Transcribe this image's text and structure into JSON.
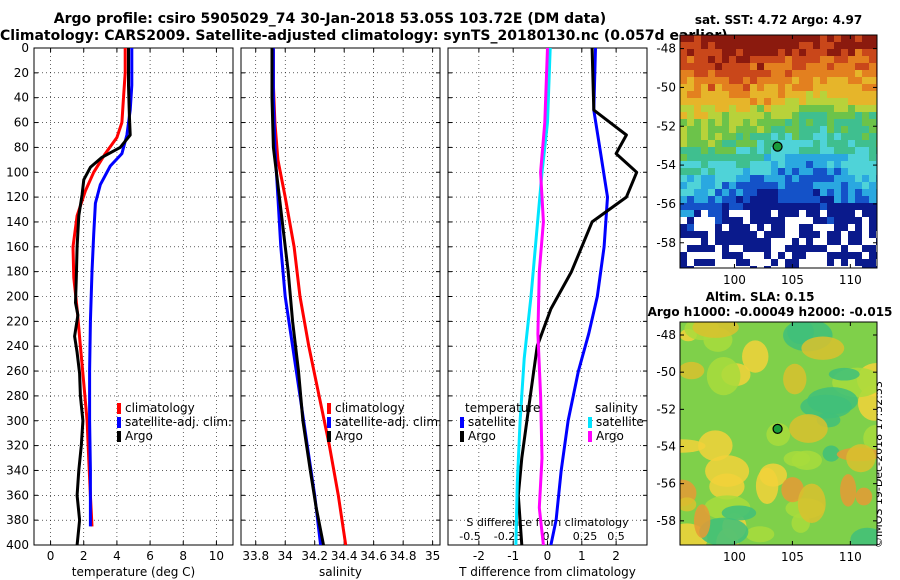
{
  "header": {
    "line1": "Argo profile: csiro 5905029_74 30-Jan-2018 53.05S 103.72E (DM data)",
    "line2": "Climatology: CARS2009. Satellite-adjusted climatology: synTS_20180130.nc (0.057d earlier)"
  },
  "colors": {
    "climatology": "#ff0000",
    "satellite": "#0000ff",
    "argo": "#000000",
    "sal_sat": "#00e5ff",
    "sal_argo": "#ff00ff"
  },
  "chart_data": [
    {
      "id": "temperature",
      "type": "line",
      "xlabel": "temperature (deg C)",
      "ylabel": "",
      "xlim": [
        -1,
        11
      ],
      "ylim": [
        0,
        400
      ],
      "xticks": [
        "0",
        "2",
        "4",
        "6",
        "8",
        "10"
      ],
      "yticks": [
        "0",
        "20",
        "40",
        "60",
        "80",
        "100",
        "120",
        "140",
        "160",
        "180",
        "200",
        "220",
        "240",
        "260",
        "280",
        "300",
        "320",
        "340",
        "360",
        "380",
        "400"
      ],
      "grid": true,
      "legend_position": "bottom-right",
      "series": [
        {
          "name": "climatology",
          "color_key": "climatology",
          "points": [
            [
              4.5,
              0
            ],
            [
              4.5,
              20
            ],
            [
              4.4,
              40
            ],
            [
              4.3,
              60
            ],
            [
              4.0,
              72
            ],
            [
              3.3,
              85
            ],
            [
              2.6,
              100
            ],
            [
              2.1,
              115
            ],
            [
              1.6,
              135
            ],
            [
              1.35,
              160
            ],
            [
              1.4,
              185
            ],
            [
              1.6,
              210
            ],
            [
              1.8,
              240
            ],
            [
              2.0,
              270
            ],
            [
              2.2,
              300
            ],
            [
              2.3,
              330
            ],
            [
              2.4,
              360
            ],
            [
              2.5,
              385
            ]
          ]
        },
        {
          "name": "satellite-adj. clim.",
          "color_key": "satellite",
          "points": [
            [
              4.9,
              0
            ],
            [
              4.9,
              30
            ],
            [
              4.8,
              50
            ],
            [
              4.6,
              70
            ],
            [
              4.3,
              85
            ],
            [
              3.6,
              95
            ],
            [
              3.0,
              110
            ],
            [
              2.7,
              125
            ],
            [
              2.6,
              150
            ],
            [
              2.5,
              180
            ],
            [
              2.4,
              220
            ],
            [
              2.35,
              260
            ],
            [
              2.35,
              300
            ],
            [
              2.4,
              340
            ],
            [
              2.4,
              385
            ]
          ]
        },
        {
          "name": "Argo",
          "color_key": "argo",
          "points": [
            [
              4.7,
              0
            ],
            [
              4.7,
              30
            ],
            [
              4.75,
              55
            ],
            [
              4.8,
              70
            ],
            [
              4.2,
              80
            ],
            [
              3.1,
              88
            ],
            [
              2.4,
              96
            ],
            [
              2.0,
              106
            ],
            [
              1.9,
              118
            ],
            [
              1.7,
              135
            ],
            [
              1.6,
              160
            ],
            [
              1.55,
              185
            ],
            [
              1.5,
              205
            ],
            [
              1.65,
              215
            ],
            [
              1.45,
              232
            ],
            [
              1.6,
              245
            ],
            [
              1.75,
              262
            ],
            [
              1.8,
              280
            ],
            [
              1.95,
              300
            ],
            [
              1.85,
              320
            ],
            [
              1.7,
              340
            ],
            [
              1.6,
              360
            ],
            [
              1.75,
              380
            ],
            [
              1.6,
              400
            ]
          ]
        }
      ]
    },
    {
      "id": "salinity",
      "type": "line",
      "xlabel": "salinity",
      "ylabel": "",
      "xlim": [
        33.7,
        35.05
      ],
      "ylim": [
        0,
        400
      ],
      "xticks": [
        "33.8",
        "34",
        "34.2",
        "34.4",
        "34.6",
        "34.8",
        "35"
      ],
      "grid": true,
      "legend_position": "bottom-right",
      "series": [
        {
          "name": "climatology",
          "color_key": "climatology",
          "points": [
            [
              33.92,
              0
            ],
            [
              33.92,
              30
            ],
            [
              33.93,
              60
            ],
            [
              33.95,
              90
            ],
            [
              34.0,
              120
            ],
            [
              34.06,
              160
            ],
            [
              34.1,
              200
            ],
            [
              34.16,
              240
            ],
            [
              34.23,
              280
            ],
            [
              34.3,
              320
            ],
            [
              34.36,
              360
            ],
            [
              34.41,
              400
            ]
          ]
        },
        {
          "name": "satellite-adj. clim.",
          "color_key": "satellite",
          "points": [
            [
              33.92,
              0
            ],
            [
              33.92,
              40
            ],
            [
              33.93,
              80
            ],
            [
              33.95,
              120
            ],
            [
              33.97,
              160
            ],
            [
              34.0,
              200
            ],
            [
              34.05,
              240
            ],
            [
              34.1,
              280
            ],
            [
              34.15,
              320
            ],
            [
              34.2,
              360
            ],
            [
              34.24,
              400
            ]
          ]
        },
        {
          "name": "Argo",
          "color_key": "argo",
          "points": [
            [
              33.91,
              0
            ],
            [
              33.91,
              40
            ],
            [
              33.92,
              80
            ],
            [
              33.95,
              110
            ],
            [
              33.98,
              140
            ],
            [
              34.02,
              180
            ],
            [
              34.05,
              220
            ],
            [
              34.09,
              260
            ],
            [
              34.12,
              300
            ],
            [
              34.17,
              340
            ],
            [
              34.21,
              370
            ],
            [
              34.26,
              400
            ]
          ]
        }
      ]
    },
    {
      "id": "difference",
      "type": "line",
      "xlabel": "T difference from climatology",
      "ylabel": "",
      "xlim": [
        -2.9,
        2.9
      ],
      "ylim": [
        0,
        400
      ],
      "xticks": [
        "-2",
        "-1",
        "0",
        "1",
        "2"
      ],
      "xlabel_top": "S difference from climatology",
      "xticks_top": [
        "-0.5",
        "-0.25",
        "0",
        "0.25",
        "0.5"
      ],
      "grid": true,
      "legend_title_left": "temperature",
      "legend_title_right": "salinity",
      "series": [
        {
          "name": "satellite",
          "group": "temperature",
          "color_key": "satellite",
          "points": [
            [
              1.4,
              0
            ],
            [
              1.35,
              50
            ],
            [
              1.55,
              85
            ],
            [
              1.75,
              120
            ],
            [
              1.65,
              160
            ],
            [
              1.45,
              200
            ],
            [
              1.2,
              230
            ],
            [
              0.9,
              260
            ],
            [
              0.6,
              300
            ],
            [
              0.4,
              340
            ],
            [
              0.25,
              380
            ],
            [
              0.1,
              400
            ]
          ]
        },
        {
          "name": "Argo",
          "group": "temperature",
          "color_key": "argo",
          "points": [
            [
              1.3,
              0
            ],
            [
              1.35,
              50
            ],
            [
              2.3,
              70
            ],
            [
              2.0,
              85
            ],
            [
              2.6,
              100
            ],
            [
              2.3,
              120
            ],
            [
              1.3,
              140
            ],
            [
              0.7,
              180
            ],
            [
              0.1,
              210
            ],
            [
              -0.3,
              240
            ],
            [
              -0.55,
              290
            ],
            [
              -0.75,
              330
            ],
            [
              -0.85,
              360
            ],
            [
              -0.75,
              400
            ]
          ]
        },
        {
          "name": "satellite",
          "group": "salinity",
          "color_key": "sal_sat",
          "points": [
            [
              0.02,
              0
            ],
            [
              0.0,
              60
            ],
            [
              -0.04,
              100
            ],
            [
              -0.08,
              150
            ],
            [
              -0.12,
              200
            ],
            [
              -0.17,
              250
            ],
            [
              -0.2,
              300
            ],
            [
              -0.22,
              350
            ],
            [
              -0.23,
              400
            ]
          ]
        },
        {
          "name": "Argo",
          "group": "salinity",
          "color_key": "sal_argo",
          "points": [
            [
              0.0,
              0
            ],
            [
              -0.02,
              60
            ],
            [
              -0.05,
              100
            ],
            [
              -0.03,
              140
            ],
            [
              -0.06,
              180
            ],
            [
              -0.07,
              230
            ],
            [
              -0.05,
              280
            ],
            [
              -0.04,
              330
            ],
            [
              -0.06,
              370
            ],
            [
              -0.03,
              400
            ]
          ]
        }
      ]
    }
  ],
  "map_sst": {
    "title": "sat. SST: 4.72 Argo: 4.97",
    "yticks": [
      "-48",
      "-50",
      "-52",
      "-54",
      "-56",
      "-58"
    ],
    "xticks": [
      "100",
      "105",
      "110"
    ],
    "lat_range": [
      -59.3,
      -47.3
    ],
    "lon_range": [
      95.3,
      112.3
    ],
    "float_lon": 103.72,
    "float_lat": -53.05
  },
  "map_sla": {
    "title1": "Altim. SLA: 0.15",
    "title2": "Argo h1000: -0.00049 h2000: -0.015",
    "yticks": [
      "-48",
      "-50",
      "-52",
      "-54",
      "-56",
      "-58"
    ],
    "xticks": [
      "100",
      "105",
      "110"
    ],
    "lat_range": [
      -59.3,
      -47.3
    ],
    "lon_range": [
      95.3,
      112.3
    ],
    "float_lon": 103.72,
    "float_lat": -53.05
  },
  "watermark": "©IMOS 19-Dec-2018 17:52:53"
}
